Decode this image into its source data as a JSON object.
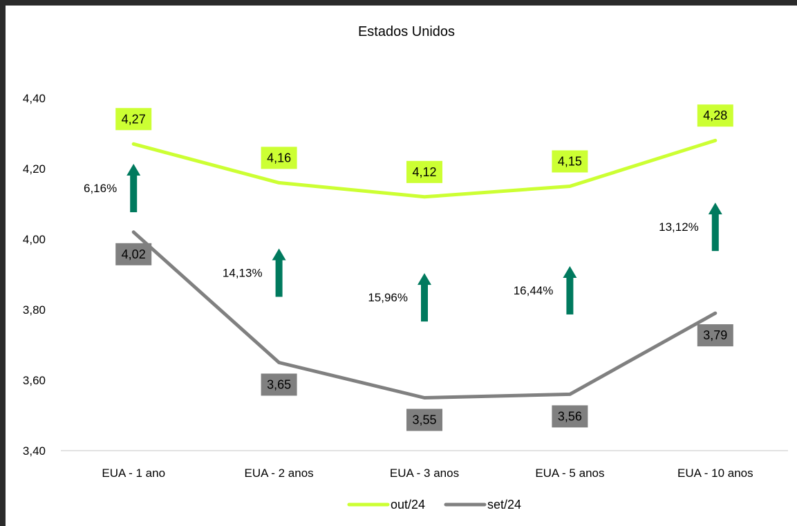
{
  "chart_data": {
    "type": "line",
    "title": "Estados Unidos",
    "xlabel": "",
    "ylabel": "",
    "categories": [
      "EUA - 1 ano",
      "EUA - 2 anos",
      "EUA - 3 anos",
      "EUA - 5 anos",
      "EUA - 10 anos"
    ],
    "ylim": [
      3.4,
      4.4
    ],
    "yticks": [
      "3,40",
      "3,60",
      "3,80",
      "4,00",
      "4,20",
      "4,40"
    ],
    "ytick_values": [
      3.4,
      3.6,
      3.8,
      4.0,
      4.2,
      4.4
    ],
    "grid": false,
    "legend_position": "bottom",
    "series": [
      {
        "name": "out/24",
        "values": [
          4.27,
          4.16,
          4.12,
          4.15,
          4.28
        ],
        "labels": [
          "4,27",
          "4,16",
          "4,12",
          "4,15",
          "4,28"
        ],
        "color": "#ccff33",
        "label_bg": "#ccff33",
        "label_color": "#000000"
      },
      {
        "name": "set/24",
        "values": [
          4.02,
          3.65,
          3.55,
          3.56,
          3.79
        ],
        "labels": [
          "4,02",
          "3,65",
          "3,55",
          "3,56",
          "3,79"
        ],
        "color": "#808080",
        "label_bg": "#808080",
        "label_color": "#000000"
      }
    ],
    "annotations": {
      "type": "up-arrow",
      "color": "#007a5e",
      "values": [
        6.16,
        14.13,
        15.96,
        16.44,
        13.12
      ],
      "labels": [
        "6,16%",
        "14,13%",
        "15,96%",
        "16,44%",
        "13,12%"
      ]
    }
  }
}
